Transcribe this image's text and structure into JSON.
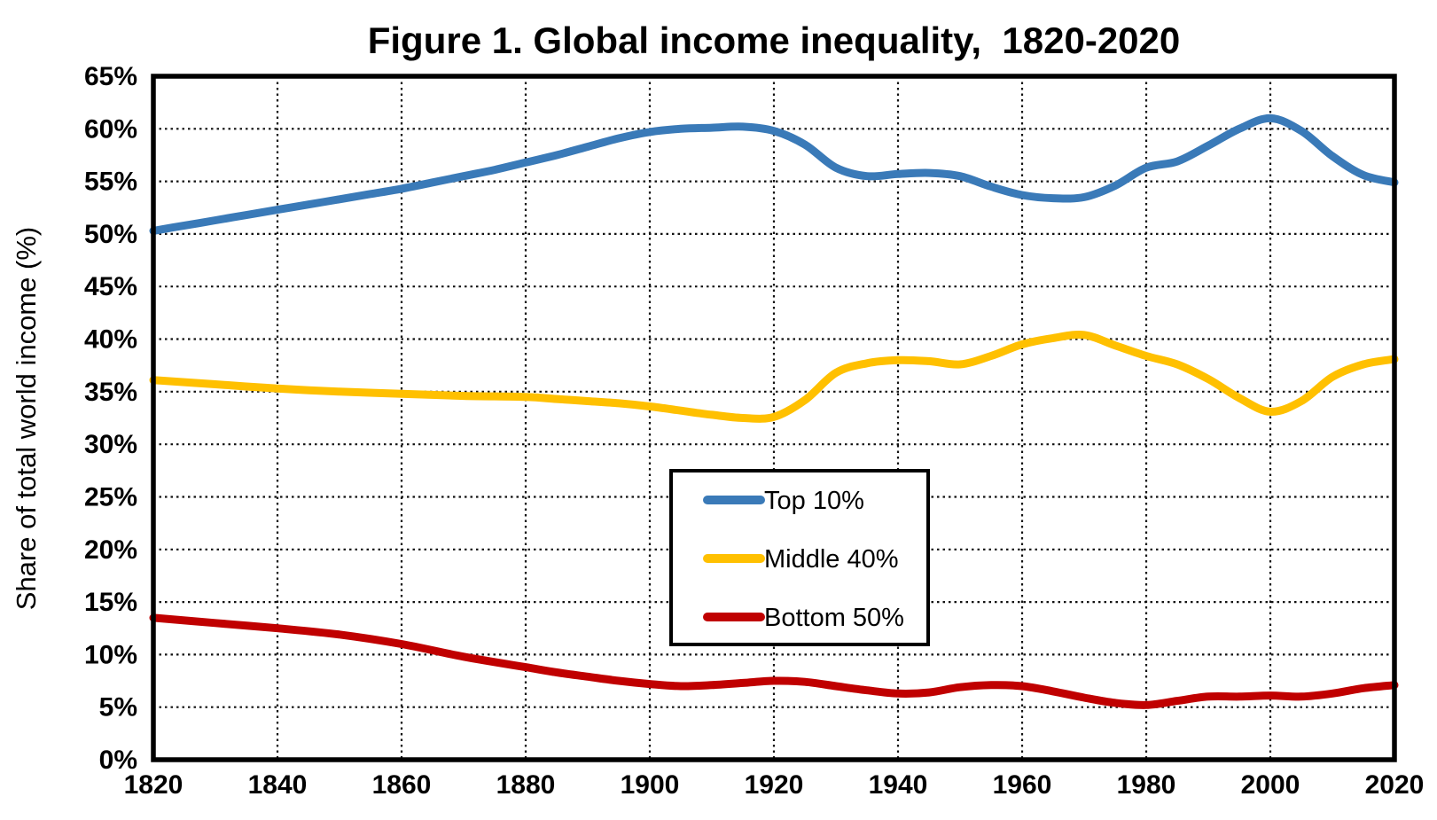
{
  "figure": {
    "background": "#ffffff"
  },
  "chart_data": {
    "type": "line",
    "title": "Figure 1. Global income inequality,  1820-2020",
    "xlabel": "",
    "ylabel": "Share of total world income (%)",
    "xlim": [
      1820,
      2020
    ],
    "ylim": [
      0,
      65
    ],
    "xticks": [
      1820,
      1840,
      1860,
      1880,
      1900,
      1920,
      1940,
      1960,
      1980,
      2000,
      2020
    ],
    "xtick_labels": [
      "1820",
      "1840",
      "1860",
      "1880",
      "1900",
      "1920",
      "1940",
      "1960",
      "1980",
      "2000",
      "2020"
    ],
    "yticks": [
      0,
      5,
      10,
      15,
      20,
      25,
      30,
      35,
      40,
      45,
      50,
      55,
      60,
      65
    ],
    "ytick_labels": [
      "0%",
      "5%",
      "10%",
      "15%",
      "20%",
      "25%",
      "30%",
      "35%",
      "40%",
      "45%",
      "50%",
      "55%",
      "60%",
      "65%"
    ],
    "grid": "dotted-both-axes",
    "legend_position": "inside-center-right-box",
    "line_width": 9,
    "frame_color": "#000000",
    "grid_color": "#111111",
    "series": [
      {
        "name": "Top 10%",
        "color": "#3A7AB8",
        "x": [
          1820,
          1825,
          1830,
          1835,
          1840,
          1845,
          1850,
          1855,
          1860,
          1865,
          1870,
          1875,
          1880,
          1885,
          1890,
          1895,
          1900,
          1905,
          1910,
          1915,
          1920,
          1925,
          1930,
          1935,
          1940,
          1945,
          1950,
          1955,
          1960,
          1965,
          1970,
          1975,
          1980,
          1985,
          1990,
          1995,
          2000,
          2005,
          2010,
          2015,
          2020
        ],
        "values": [
          50.3,
          50.8,
          51.3,
          51.8,
          52.3,
          52.8,
          53.3,
          53.8,
          54.3,
          54.9,
          55.5,
          56.1,
          56.8,
          57.5,
          58.3,
          59.1,
          59.7,
          60.0,
          60.1,
          60.2,
          59.8,
          58.5,
          56.3,
          55.5,
          55.7,
          55.8,
          55.5,
          54.5,
          53.7,
          53.4,
          53.5,
          54.6,
          56.3,
          56.9,
          58.4,
          60.0,
          61.0,
          59.8,
          57.4,
          55.6,
          54.9
        ]
      },
      {
        "name": "Middle 40%",
        "color": "#FFC000",
        "x": [
          1820,
          1830,
          1840,
          1850,
          1860,
          1870,
          1880,
          1885,
          1890,
          1895,
          1900,
          1905,
          1910,
          1915,
          1920,
          1925,
          1930,
          1935,
          1940,
          1945,
          1950,
          1955,
          1960,
          1965,
          1970,
          1975,
          1980,
          1985,
          1990,
          1995,
          2000,
          2005,
          2010,
          2015,
          2020
        ],
        "values": [
          36.1,
          35.7,
          35.3,
          35.0,
          34.8,
          34.6,
          34.5,
          34.3,
          34.1,
          33.9,
          33.6,
          33.2,
          32.8,
          32.5,
          32.6,
          34.2,
          36.8,
          37.7,
          38.0,
          37.9,
          37.6,
          38.4,
          39.5,
          40.1,
          40.4,
          39.4,
          38.4,
          37.6,
          36.2,
          34.4,
          33.1,
          34.1,
          36.4,
          37.6,
          38.1
        ]
      },
      {
        "name": "Bottom 50%",
        "color": "#C00000",
        "x": [
          1820,
          1830,
          1840,
          1850,
          1860,
          1870,
          1880,
          1885,
          1890,
          1895,
          1900,
          1905,
          1910,
          1915,
          1920,
          1925,
          1930,
          1935,
          1940,
          1945,
          1950,
          1955,
          1960,
          1965,
          1970,
          1975,
          1980,
          1985,
          1990,
          1995,
          2000,
          2005,
          2010,
          2015,
          2020
        ],
        "values": [
          13.5,
          13.0,
          12.5,
          11.9,
          11.0,
          9.8,
          8.8,
          8.3,
          7.9,
          7.5,
          7.2,
          7.0,
          7.1,
          7.3,
          7.5,
          7.4,
          7.0,
          6.6,
          6.3,
          6.4,
          6.9,
          7.1,
          7.0,
          6.5,
          5.9,
          5.4,
          5.2,
          5.6,
          6.0,
          6.0,
          6.1,
          6.0,
          6.3,
          6.8,
          7.1
        ]
      }
    ]
  }
}
